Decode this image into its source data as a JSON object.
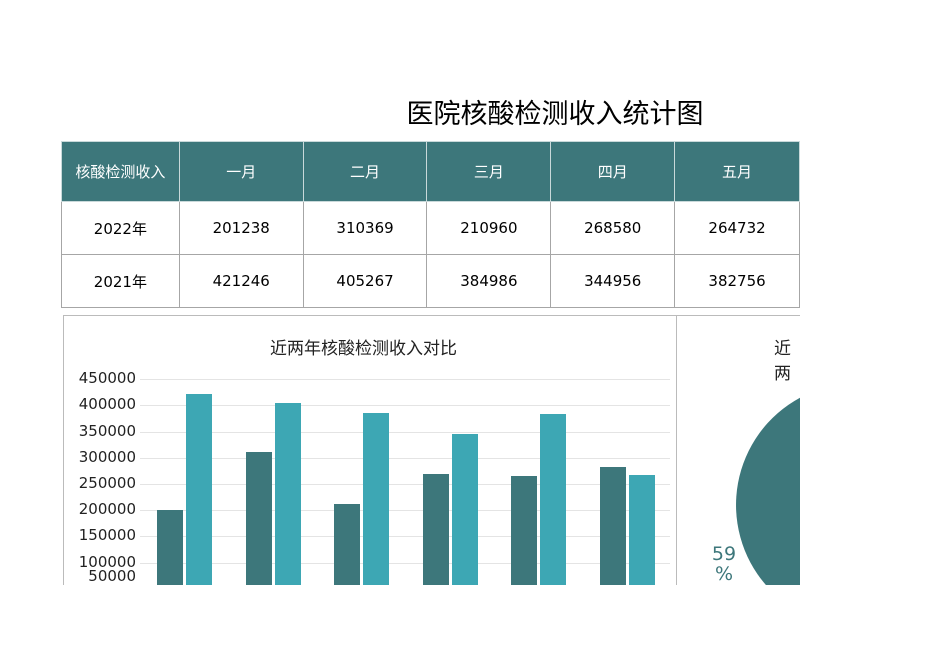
{
  "title": "医院核酸检测收入统计图",
  "table": {
    "headers": [
      "核酸检测收入",
      "一月",
      "二月",
      "三月",
      "四月",
      "五月"
    ],
    "rows": [
      [
        "2022年",
        "201238",
        "310369",
        "210960",
        "268580",
        "264732"
      ],
      [
        "2021年",
        "421246",
        "405267",
        "384986",
        "344956",
        "382756"
      ]
    ]
  },
  "colors": {
    "header": "#3d777b",
    "series_2022": "#3d777b",
    "series_2021": "#3da7b4"
  },
  "chart_data": [
    {
      "type": "bar",
      "title": "近两年核酸检测收入对比",
      "ylim": [
        0,
        450000
      ],
      "yticks": [
        "450000",
        "400000",
        "350000",
        "300000",
        "250000",
        "200000",
        "150000",
        "100000",
        "50000"
      ],
      "grid": true,
      "series": [
        {
          "values": [
            201238,
            310369,
            210960,
            268580,
            264732,
            283000
          ]
        },
        {
          "values": [
            421246,
            405267,
            384986,
            344956,
            382756,
            267000
          ]
        }
      ]
    },
    {
      "type": "pie",
      "title": "近两",
      "labels": [
        "59",
        "%"
      ]
    }
  ]
}
